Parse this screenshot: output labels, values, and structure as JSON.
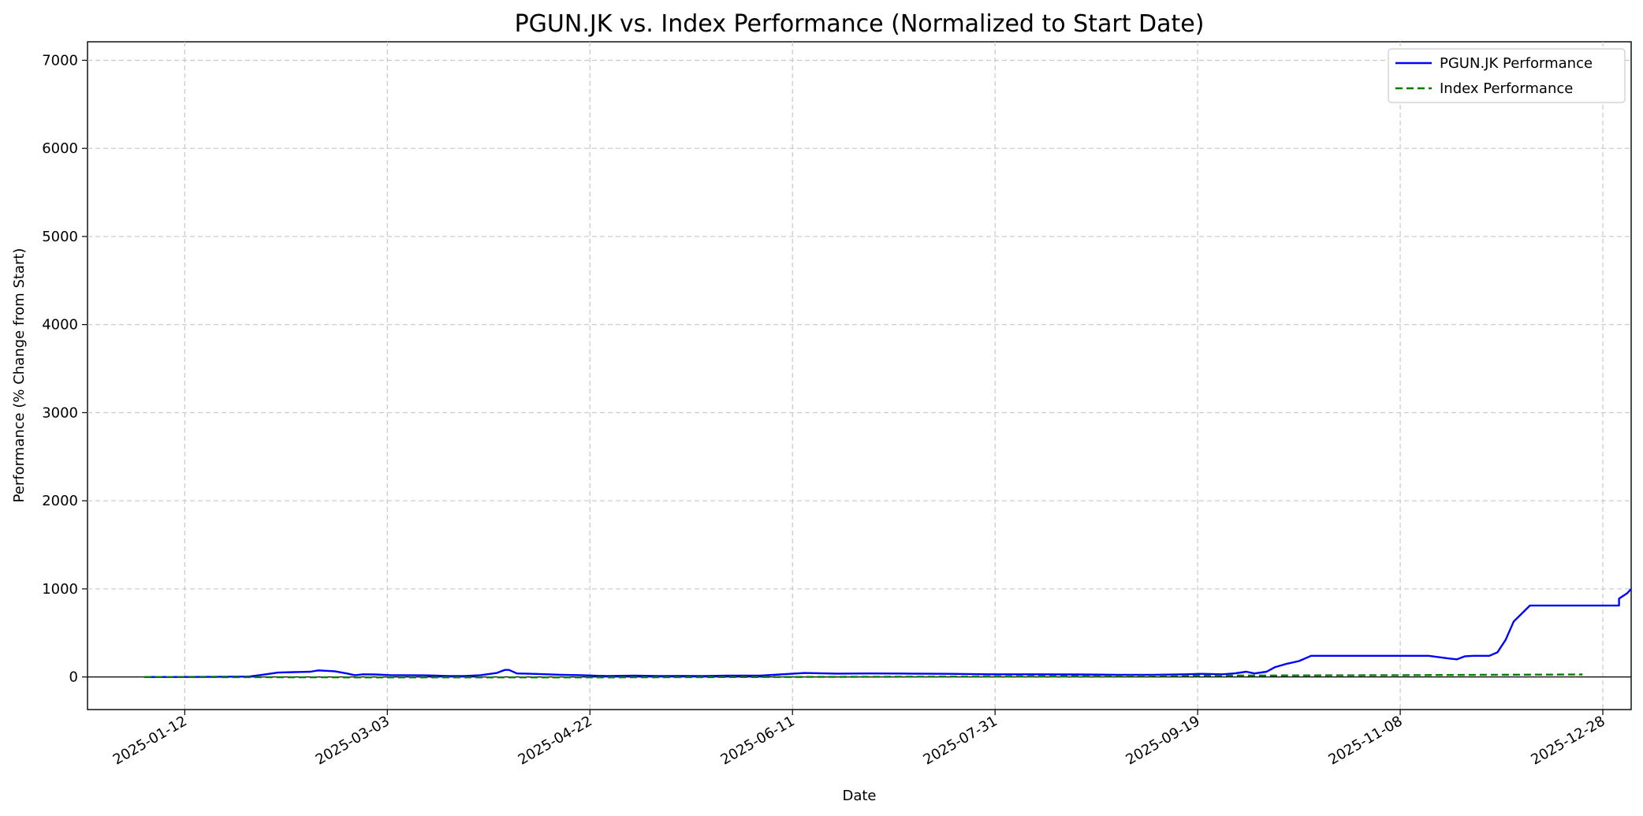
{
  "chart_data": {
    "type": "line",
    "title": "PGUN.JK vs. Index Performance (Normalized to Start Date)",
    "xlabel": "Date",
    "ylabel": "Performance (% Change from Start)",
    "x_type": "date",
    "xlim": [
      "2024-12-19",
      "2026-01-04"
    ],
    "ylim": [
      -370,
      7210
    ],
    "x_ticks": [
      "2025-01-12",
      "2025-03-03",
      "2025-04-22",
      "2025-06-11",
      "2025-07-31",
      "2025-09-19",
      "2025-11-08",
      "2025-12-28"
    ],
    "y_ticks": [
      0,
      1000,
      2000,
      3000,
      4000,
      5000,
      6000,
      7000
    ],
    "grid": true,
    "zero_line": true,
    "legend_position": "top-right",
    "series": [
      {
        "name": "PGUN.JK Performance",
        "color": "#0000ff",
        "style": "solid",
        "points": [
          [
            "2025-01-02",
            0
          ],
          [
            "2025-01-10",
            0
          ],
          [
            "2025-01-20",
            2
          ],
          [
            "2025-01-28",
            5
          ],
          [
            "2025-02-01",
            30
          ],
          [
            "2025-02-04",
            50
          ],
          [
            "2025-02-08",
            55
          ],
          [
            "2025-02-12",
            60
          ],
          [
            "2025-02-14",
            75
          ],
          [
            "2025-02-18",
            65
          ],
          [
            "2025-02-21",
            40
          ],
          [
            "2025-02-23",
            20
          ],
          [
            "2025-02-25",
            30
          ],
          [
            "2025-02-28",
            28
          ],
          [
            "2025-03-04",
            20
          ],
          [
            "2025-03-12",
            18
          ],
          [
            "2025-03-15",
            15
          ],
          [
            "2025-03-18",
            10
          ],
          [
            "2025-03-22",
            10
          ],
          [
            "2025-03-26",
            20
          ],
          [
            "2025-03-30",
            45
          ],
          [
            "2025-04-01",
            80
          ],
          [
            "2025-04-02",
            80
          ],
          [
            "2025-04-04",
            40
          ],
          [
            "2025-04-08",
            35
          ],
          [
            "2025-04-15",
            25
          ],
          [
            "2025-04-20",
            20
          ],
          [
            "2025-04-26",
            10
          ],
          [
            "2025-05-03",
            15
          ],
          [
            "2025-05-09",
            10
          ],
          [
            "2025-05-15",
            12
          ],
          [
            "2025-05-20",
            10
          ],
          [
            "2025-05-26",
            15
          ],
          [
            "2025-06-03",
            15
          ],
          [
            "2025-06-14",
            45
          ],
          [
            "2025-06-22",
            38
          ],
          [
            "2025-06-30",
            40
          ],
          [
            "2025-07-10",
            38
          ],
          [
            "2025-07-20",
            35
          ],
          [
            "2025-07-30",
            30
          ],
          [
            "2025-08-10",
            30
          ],
          [
            "2025-08-20",
            28
          ],
          [
            "2025-08-30",
            25
          ],
          [
            "2025-09-08",
            25
          ],
          [
            "2025-09-16",
            30
          ],
          [
            "2025-09-20",
            35
          ],
          [
            "2025-09-25",
            30
          ],
          [
            "2025-09-28",
            40
          ],
          [
            "2025-10-01",
            60
          ],
          [
            "2025-10-03",
            40
          ],
          [
            "2025-10-06",
            60
          ],
          [
            "2025-10-08",
            110
          ],
          [
            "2025-10-11",
            150
          ],
          [
            "2025-10-14",
            180
          ],
          [
            "2025-10-17",
            240
          ],
          [
            "2025-10-20",
            240
          ],
          [
            "2025-10-24",
            240
          ],
          [
            "2025-10-28",
            240
          ],
          [
            "2025-11-04",
            240
          ],
          [
            "2025-11-09",
            240
          ],
          [
            "2025-11-15",
            240
          ],
          [
            "2025-11-20",
            210
          ],
          [
            "2025-11-22",
            200
          ],
          [
            "2025-11-24",
            235
          ],
          [
            "2025-11-26",
            240
          ],
          [
            "2025-11-30",
            240
          ],
          [
            "2025-12-02",
            280
          ],
          [
            "2025-12-04",
            420
          ],
          [
            "2025-12-06",
            630
          ],
          [
            "2025-12-10",
            810
          ],
          [
            "2025-12-14",
            810
          ],
          [
            "2025-12-18",
            810
          ],
          [
            "2025-12-20",
            810
          ],
          [
            "2025-12-24",
            810
          ],
          [
            "2025-12-28",
            810
          ],
          [
            "2026-01-01",
            810
          ],
          [
            "2026-01-01",
            890
          ],
          [
            "2026-01-03",
            950
          ],
          [
            "2026-01-04",
            1000
          ]
        ]
      },
      {
        "name": "Index Performance",
        "color": "#008000",
        "style": "dashed",
        "points": [
          [
            "2025-01-02",
            0
          ],
          [
            "2025-03-01",
            -5
          ],
          [
            "2025-04-22",
            -5
          ],
          [
            "2025-07-31",
            5
          ],
          [
            "2025-09-19",
            15
          ],
          [
            "2025-11-08",
            20
          ],
          [
            "2025-12-23",
            28
          ]
        ]
      }
    ]
  }
}
